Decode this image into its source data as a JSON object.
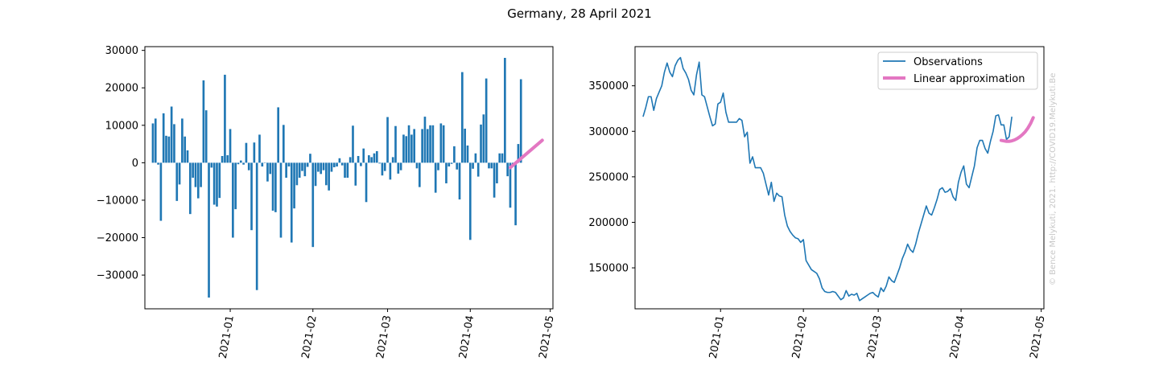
{
  "figure": {
    "title": "Germany, 28 April 2021",
    "credit": "© Bence Melykuti, 2021. http://COVID19.Melykuti.Be"
  },
  "colors": {
    "observations": "#1f77b4",
    "approximation": "#e377c2"
  },
  "chart_data": [
    {
      "type": "bar",
      "title": "",
      "xlabel": "",
      "ylabel": "",
      "x_start": "2020-12-03",
      "x_end": "2021-04-28",
      "xlim": [
        "2020-11-30",
        "2021-05-02"
      ],
      "ylim": [
        -39000,
        31000
      ],
      "x_ticks": [
        "2021-01",
        "2021-02",
        "2021-03",
        "2021-04",
        "2021-05"
      ],
      "y_ticks": [
        30000,
        20000,
        10000,
        0,
        -10000,
        -20000,
        -30000
      ],
      "series": [
        {
          "values": [
            10500,
            11800,
            -500,
            -15500,
            13200,
            7200,
            7000,
            15000,
            10300,
            -10200,
            -5800,
            11800,
            7000,
            3300,
            -13700,
            -4000,
            -6500,
            -9500,
            -6500,
            22000,
            14000,
            -36000,
            -1300,
            -11200,
            -11700,
            -9400,
            1800,
            23500,
            2000,
            9000,
            -20000,
            -12400,
            -400,
            600,
            -500,
            5300,
            -2000,
            -18000,
            5400,
            -34000,
            7500,
            -1000,
            -100,
            -5000,
            -3000,
            -12800,
            -13200,
            14800,
            -20000,
            10100,
            -4000,
            -1000,
            -21300,
            -12200,
            -6000,
            -4000,
            -2200,
            -3600,
            -1100,
            2400,
            -22500,
            -6200,
            -2400,
            -3000,
            -2000,
            -6000,
            -7400,
            -2400,
            -1200,
            -1000,
            1200,
            -700,
            -4000,
            -4000,
            1500,
            9900,
            -6100,
            1800,
            -900,
            3800,
            -10500,
            2000,
            1500,
            2500,
            3100,
            -200,
            -3400,
            -2200,
            12200,
            -4500,
            1500,
            9800,
            -2900,
            -2000,
            7500,
            7100,
            10000,
            7500,
            9000,
            -1500,
            -6500,
            9000,
            12300,
            9000,
            10000,
            10000,
            -8000,
            -2000,
            10500,
            10000,
            -5500,
            -1000,
            -300,
            4400,
            -1800,
            -9800,
            24200,
            9100,
            4600,
            -20600,
            -1600,
            2500,
            -3700,
            10200,
            12900,
            22500,
            -1500,
            -1500,
            -9300,
            -5500,
            2500,
            2500,
            28000,
            -3600,
            -12000,
            -1000,
            -16700,
            5000,
            22300
          ]
        }
      ],
      "approximation": {
        "x": [
          "2021-04-16",
          "2021-04-28"
        ],
        "y": [
          -1300,
          6000
        ]
      }
    },
    {
      "type": "line",
      "title": "",
      "xlabel": "",
      "ylabel": "",
      "x_start": "2020-12-03",
      "x_end": "2021-04-28",
      "xlim": [
        "2020-11-30",
        "2021-05-02"
      ],
      "ylim": [
        105000,
        393000
      ],
      "x_ticks": [
        "2021-01",
        "2021-02",
        "2021-03",
        "2021-04",
        "2021-05"
      ],
      "y_ticks": [
        350000,
        300000,
        250000,
        200000,
        150000
      ],
      "legend_position": "top-right",
      "series": [
        {
          "name": "Observations",
          "values": [
            316000,
            326000,
            338000,
            338000,
            323000,
            336000,
            343000,
            350000,
            365000,
            375000,
            365000,
            360000,
            372000,
            378000,
            381000,
            369000,
            364000,
            357000,
            345000,
            340000,
            362000,
            376000,
            340000,
            338000,
            327000,
            316000,
            306000,
            308000,
            330000,
            332000,
            342000,
            321000,
            310000,
            310000,
            310000,
            310000,
            314000,
            312000,
            294000,
            299000,
            265000,
            272000,
            260000,
            260000,
            260000,
            254000,
            242000,
            230000,
            244000,
            223000,
            232000,
            229000,
            228000,
            208000,
            196000,
            190000,
            186000,
            183000,
            182000,
            178000,
            181000,
            158000,
            153000,
            148000,
            146000,
            144000,
            138000,
            128000,
            124000,
            123000,
            123000,
            124000,
            123000,
            119000,
            115000,
            117000,
            125000,
            119000,
            121000,
            120000,
            122000,
            114000,
            116000,
            118000,
            120000,
            122000,
            123000,
            120000,
            118000,
            128000,
            124000,
            130000,
            140000,
            136000,
            134000,
            142000,
            150000,
            160000,
            167000,
            176000,
            170000,
            167000,
            176000,
            188000,
            198000,
            208000,
            218000,
            210000,
            208000,
            216000,
            225000,
            236000,
            238000,
            233000,
            234000,
            237000,
            228000,
            224000,
            244000,
            255000,
            262000,
            242000,
            238000,
            250000,
            262000,
            282000,
            290000,
            290000,
            281000,
            276000,
            289000,
            300000,
            317000,
            318000,
            307000,
            307000,
            291000,
            294000,
            316000
          ]
        }
      ],
      "approximation": {
        "name": "Linear approximation",
        "x": [
          "2021-04-16",
          "2021-04-17",
          "2021-04-18",
          "2021-04-19",
          "2021-04-20",
          "2021-04-21",
          "2021-04-22",
          "2021-04-23",
          "2021-04-24",
          "2021-04-25",
          "2021-04-26",
          "2021-04-27",
          "2021-04-28"
        ],
        "y": [
          290000,
          289500,
          289000,
          289000,
          289500,
          290500,
          292000,
          294000,
          296500,
          299500,
          303500,
          308500,
          315000
        ]
      }
    }
  ]
}
